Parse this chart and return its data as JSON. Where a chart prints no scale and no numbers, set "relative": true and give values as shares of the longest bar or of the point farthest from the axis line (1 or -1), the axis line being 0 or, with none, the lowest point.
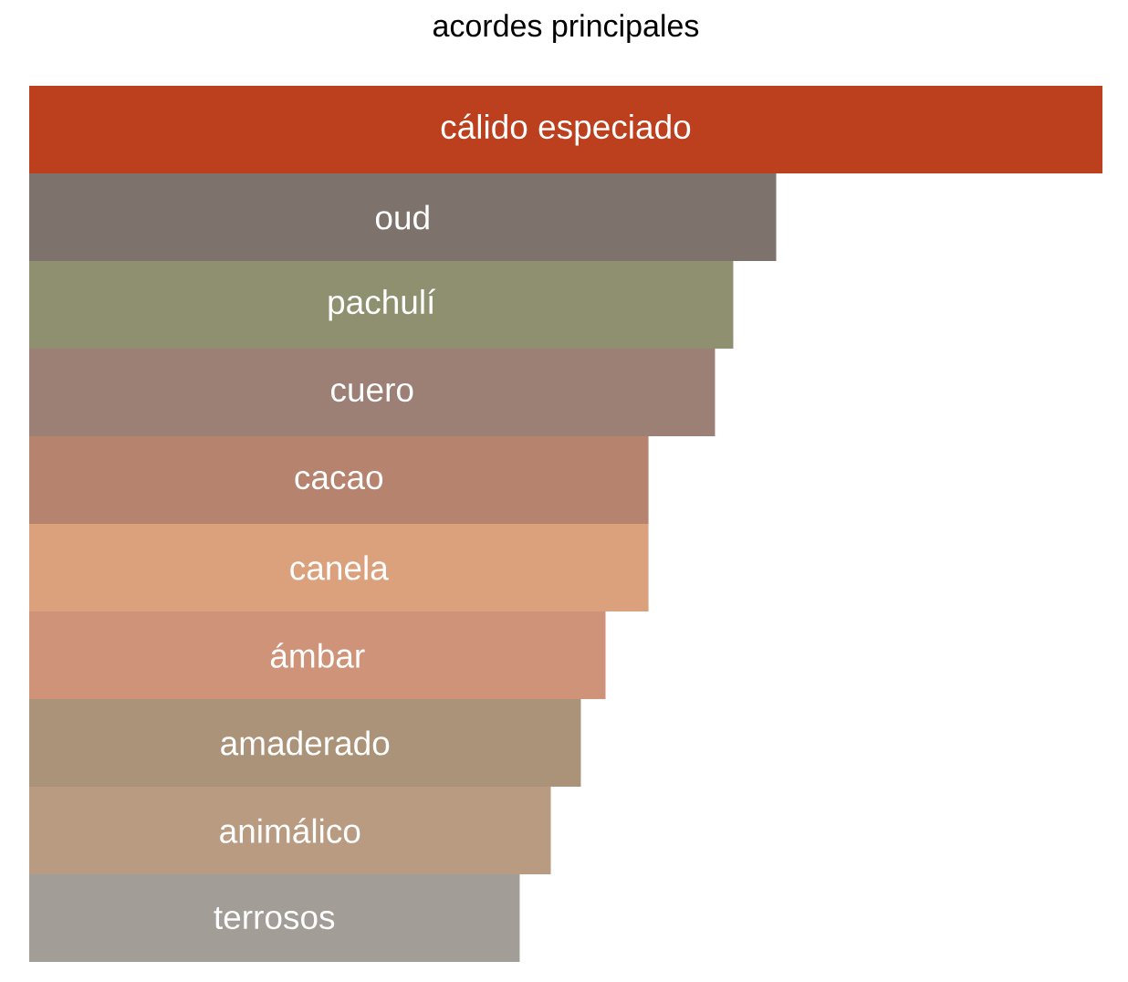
{
  "chart_data": {
    "type": "bar",
    "orientation": "horizontal",
    "relative": true,
    "title": "acordes principales",
    "categories": [
      "cálido especiado",
      "oud",
      "pachulí",
      "cuero",
      "cacao",
      "canela",
      "ámbar",
      "amaderado",
      "animálico",
      "terrosos"
    ],
    "values": [
      1,
      0.696,
      0.656,
      0.639,
      0.577,
      0.577,
      0.537,
      0.514,
      0.486,
      0.457
    ],
    "colors": [
      "#bc401e",
      "#7d726c",
      "#8f9070",
      "#9c8076",
      "#b6836e",
      "#dba17c",
      "#cf9379",
      "#ab937a",
      "#b89b81",
      "#a29d96"
    ],
    "data_labels": false
  }
}
